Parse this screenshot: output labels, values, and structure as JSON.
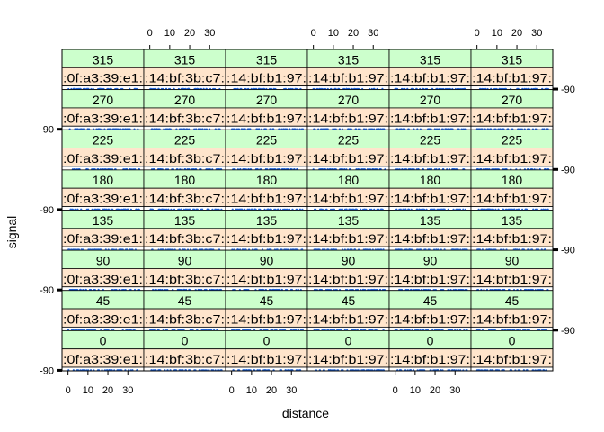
{
  "chart_data": {
    "type": "scatter",
    "layout": "trellis",
    "xlabel": "distance",
    "ylabel": "signal",
    "x_ticks": [
      0,
      10,
      20,
      30
    ],
    "y_ticks": [
      -90
    ],
    "xlim": [
      -3,
      38
    ],
    "ylim": [
      -100,
      -30
    ],
    "rows": [
      "315",
      "270",
      "225",
      "180",
      "135",
      "90",
      "45",
      "0"
    ],
    "columns": [
      ":0f:a3:39:e1:",
      ":14:bf:3b:c7:",
      ":14:bf:b1:97:",
      ":14:bf:b1:97:",
      ":14:bf:b1:97:",
      ":14:bf:b1:97:"
    ],
    "series": [
      {
        "color": "#1e62d8",
        "signal_range": [
          -92,
          -86
        ],
        "distance_range": [
          0,
          36
        ]
      }
    ],
    "colors": {
      "angle_strip": "#ccffcc",
      "mac_strip": "#ffe5cc",
      "points": "#1e62d8",
      "frame": "#000000"
    }
  }
}
